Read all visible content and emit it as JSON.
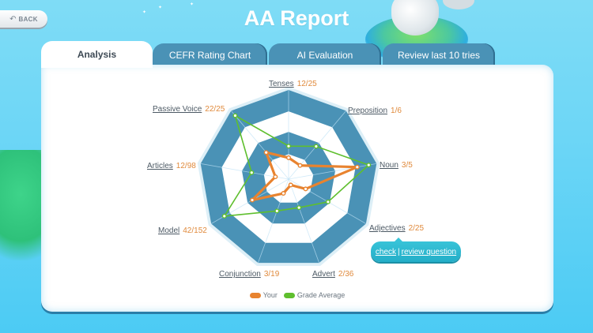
{
  "header": {
    "title": "AA Report",
    "back_label": "BACK"
  },
  "tabs": [
    {
      "label": "Analysis",
      "active": true
    },
    {
      "label": "CEFR Rating Chart",
      "active": false
    },
    {
      "label": "AI Evaluation",
      "active": false
    },
    {
      "label": "Review last 10 tries",
      "active": false
    }
  ],
  "colors": {
    "your": "#e8832f",
    "grade_average": "#5fbf2e",
    "radar_band": "#4a92b6",
    "score_text": "#e08a3c"
  },
  "axes": [
    {
      "name": "Tenses",
      "score": "12/25"
    },
    {
      "name": "Preposition",
      "score": "1/6"
    },
    {
      "name": "Noun",
      "score": "3/5"
    },
    {
      "name": "Adjectives",
      "score": "2/25"
    },
    {
      "name": "Advert",
      "score": "2/36"
    },
    {
      "name": "Conjunction",
      "score": "3/19"
    },
    {
      "name": "Model",
      "score": "42/152"
    },
    {
      "name": "Articles",
      "score": "12/98"
    },
    {
      "name": "Passive Voice",
      "score": "22/25"
    }
  ],
  "popup": {
    "check_label": "check",
    "separator": "|",
    "review_label": "review question"
  },
  "legend": {
    "your_label": "Your",
    "avg_label": "Grade Average"
  },
  "chart_data": {
    "type": "radar",
    "title": "",
    "categories": [
      "Tenses",
      "Preposition",
      "Noun",
      "Adjectives",
      "Advert",
      "Conjunction",
      "Model",
      "Articles",
      "Passive Voice"
    ],
    "series": [
      {
        "name": "Your",
        "values": [
          0.24,
          0.2,
          0.78,
          0.22,
          0.07,
          0.17,
          0.47,
          0.15,
          0.39
        ]
      },
      {
        "name": "Grade Average",
        "values": [
          0.37,
          0.48,
          0.91,
          0.51,
          0.34,
          0.38,
          0.83,
          0.42,
          0.93
        ]
      }
    ],
    "range": [
      0,
      1
    ],
    "legend_position": "bottom"
  }
}
